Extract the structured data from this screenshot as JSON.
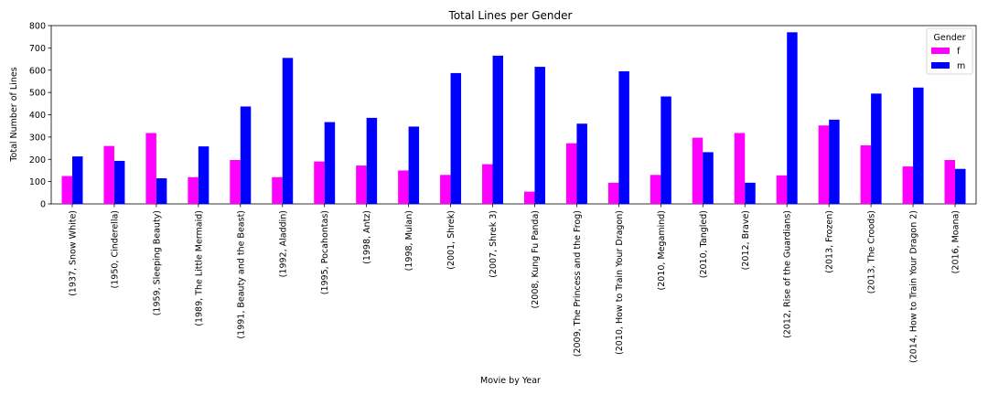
{
  "chart_data": {
    "type": "bar",
    "title": "Total Lines per Gender",
    "xlabel": "Movie by Year",
    "ylabel": "Total Number of Lines",
    "ylim": [
      0,
      800
    ],
    "yticks": [
      0,
      100,
      200,
      300,
      400,
      500,
      600,
      700,
      800
    ],
    "grid": false,
    "legend": {
      "title": "Gender",
      "placement": "top-right"
    },
    "categories": [
      "(1937, Snow White)",
      "(1950, Cinderella)",
      "(1959, Sleeping Beauty)",
      "(1989, The Little Mermaid)",
      "(1991, Beauty and the Beast)",
      "(1992, Aladdin)",
      "(1995, Pocahontas)",
      "(1998, Antz)",
      "(1998, Mulan)",
      "(2001, Shrek)",
      "(2007, Shrek 3)",
      "(2008, Kung Fu Panda)",
      "(2009, The Princess and the Frog)",
      "(2010, How to Train Your Dragon)",
      "(2010, Megamind)",
      "(2010, Tangled)",
      "(2012, Brave)",
      "(2012, Rise of the Guardians)",
      "(2013, Frozen)",
      "(2013, The Croods)",
      "(2014, How to Train Your Dragon 2)",
      "(2016, Moana)"
    ],
    "series": [
      {
        "name": "f",
        "color": "#ff00ff",
        "values": [
          125,
          260,
          318,
          120,
          197,
          120,
          190,
          172,
          150,
          130,
          178,
          55,
          272,
          95,
          130,
          297,
          318,
          128,
          352,
          263,
          168,
          197
        ]
      },
      {
        "name": "m",
        "color": "#0000ff",
        "values": [
          213,
          193,
          115,
          258,
          437,
          655,
          367,
          386,
          347,
          587,
          665,
          615,
          360,
          595,
          482,
          232,
          95,
          770,
          378,
          495,
          522,
          157
        ]
      }
    ]
  }
}
